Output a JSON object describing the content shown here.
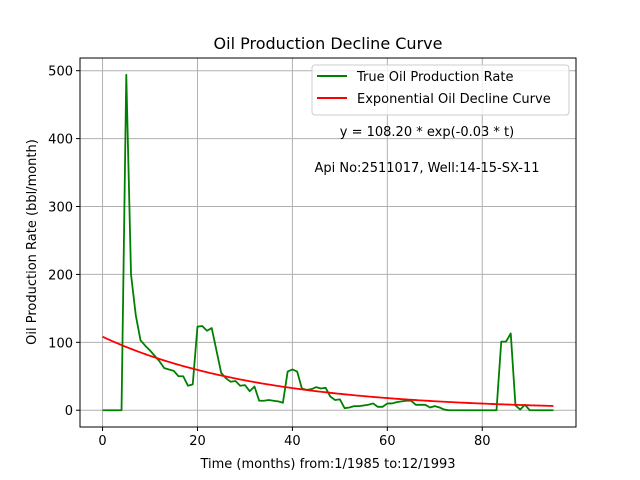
{
  "chart_data": {
    "type": "line",
    "title": "Oil Production Decline Curve",
    "xlabel": "Time (months) from:1/1985 to:12/1993",
    "ylabel": "Oil Production Rate (bbl/month)",
    "xlim": [
      -4.75,
      99.75
    ],
    "ylim": [
      -24.7,
      518.7
    ],
    "xticks": [
      0,
      20,
      40,
      60,
      80
    ],
    "yticks": [
      0,
      100,
      200,
      300,
      400,
      500
    ],
    "grid": true,
    "legend_position": "top-right",
    "annotations": [
      "y = 108.20 * exp(-0.03 * t)",
      "Api No:2511017, Well:14-15-SX-11"
    ],
    "series": [
      {
        "name": "True Oil Production Rate",
        "color": "#008000",
        "x": [
          0,
          1,
          2,
          3,
          4,
          5,
          6,
          7,
          8,
          9,
          10,
          11,
          12,
          13,
          14,
          15,
          16,
          17,
          18,
          19,
          20,
          21,
          22,
          23,
          24,
          25,
          26,
          27,
          28,
          29,
          30,
          31,
          32,
          33,
          34,
          35,
          36,
          37,
          38,
          39,
          40,
          41,
          42,
          43,
          44,
          45,
          46,
          47,
          48,
          49,
          50,
          51,
          52,
          53,
          54,
          55,
          56,
          57,
          58,
          59,
          60,
          61,
          62,
          63,
          64,
          65,
          66,
          67,
          68,
          69,
          70,
          71,
          72,
          73,
          74,
          75,
          76,
          77,
          78,
          79,
          80,
          81,
          82,
          83,
          84,
          85,
          86,
          87,
          88,
          89,
          90,
          91,
          92,
          93,
          94,
          95
        ],
        "y": [
          0,
          0,
          0,
          0,
          0,
          494,
          200,
          140,
          103,
          95,
          88,
          80,
          72,
          62,
          60,
          58,
          50,
          50,
          36,
          38,
          123,
          124,
          117,
          121,
          88,
          55,
          47,
          42,
          43,
          36,
          37,
          28,
          35,
          14,
          14,
          15,
          14,
          13,
          11,
          57,
          60,
          57,
          32,
          30,
          31,
          34,
          32,
          33,
          20,
          15,
          16,
          3,
          4,
          6,
          6,
          7,
          8,
          10,
          5,
          5,
          10,
          10,
          12,
          13,
          14,
          14,
          8,
          8,
          8,
          4,
          6,
          4,
          1,
          0,
          0,
          0,
          0,
          0,
          0,
          0,
          0,
          0,
          0,
          0,
          101,
          101,
          113,
          7,
          1,
          8,
          0,
          0,
          0,
          0,
          0,
          0
        ]
      },
      {
        "name": "Exponential Oil Decline Curve",
        "color": "#ff0000",
        "a": 108.2,
        "b": -0.03,
        "x_range": [
          0,
          95
        ]
      }
    ]
  }
}
